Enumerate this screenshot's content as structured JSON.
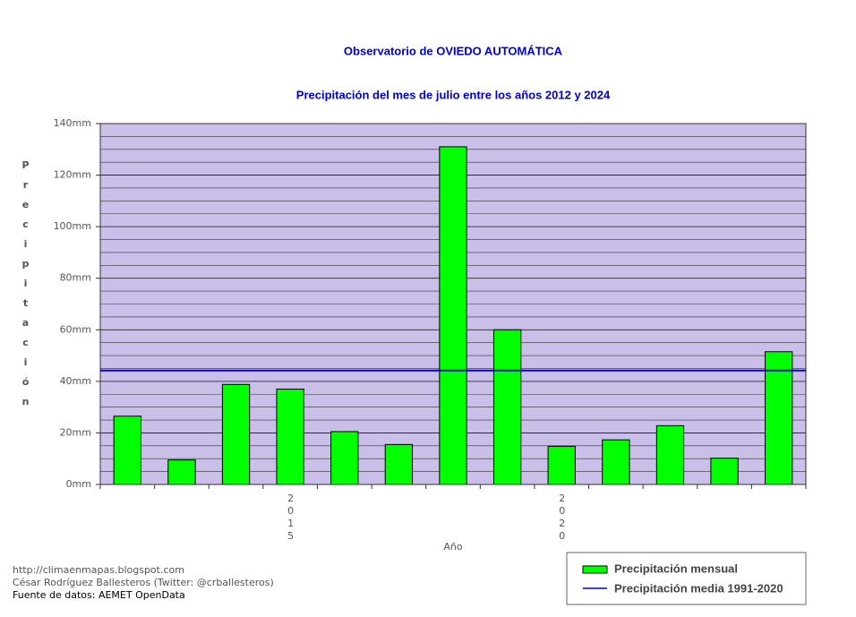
{
  "chart_data": {
    "type": "bar",
    "title": "Observatorio de OVIEDO AUTOMÁTICA",
    "subtitle": "Precipitación del mes de julio entre los años 2012 y 2024",
    "y_label": "Precipitación",
    "x_label": "Año",
    "categories": [
      null,
      null,
      null,
      "2015",
      null,
      null,
      null,
      null,
      "2020",
      null,
      null,
      null,
      null
    ],
    "series": [
      {
        "name": "Precipitación mensual",
        "color": "#00ff00",
        "values": [
          26.5,
          9.5,
          38.8,
          37,
          20.5,
          15.5,
          131,
          60,
          14.8,
          17.3,
          22.8,
          10.2,
          51.5
        ]
      }
    ],
    "reference_line": {
      "name": "Precipitación media 1991-2020",
      "color": "#0000cc",
      "value": 44.2
    },
    "ylim": [
      0,
      140
    ],
    "yticks": [
      {
        "value": 0,
        "label": "0mm"
      },
      {
        "value": 20,
        "label": "20mm"
      },
      {
        "value": 40,
        "label": "40mm"
      },
      {
        "value": 60,
        "label": "60mm"
      },
      {
        "value": 80,
        "label": "80mm"
      },
      {
        "value": 100,
        "label": "100mm"
      },
      {
        "value": 120,
        "label": "120mm"
      },
      {
        "value": 140,
        "label": "140mm"
      }
    ],
    "minor_grid_step": 5,
    "plot_background": "#c9bfe8",
    "grid": true,
    "legend": "bottom-right"
  },
  "footer": [
    "http://climaenmapas.blogspot.com",
    "César Rodríguez Ballesteros (Twitter: @crballesteros)",
    "Fuente de datos: AEMET OpenData"
  ]
}
